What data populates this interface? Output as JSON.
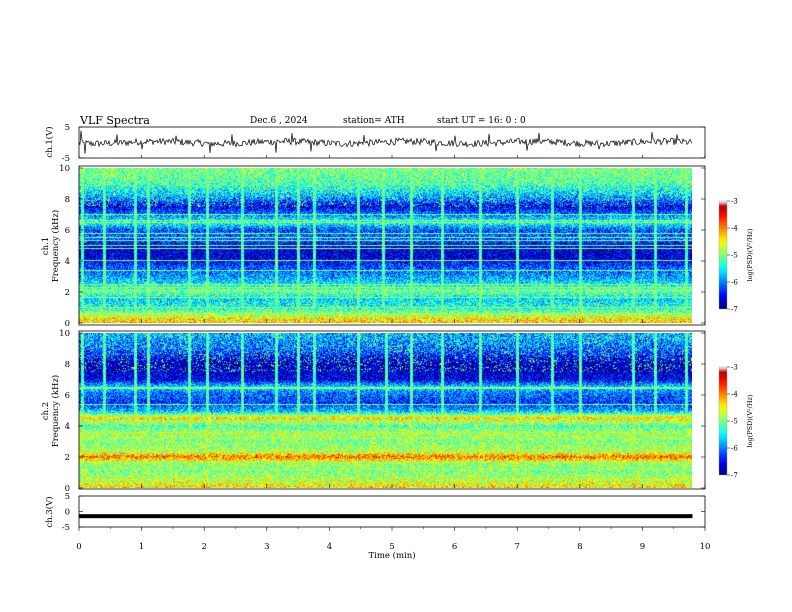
{
  "header": {
    "title": "VLF  Spectra",
    "date": "Dec.6  , 2024",
    "station": "station= ATH",
    "start": "start  UT  =    16: 0  : 0"
  },
  "chart_data": [
    {
      "type": "line",
      "panel": "ch1-waveform",
      "ylabel": "ch.1(V)",
      "ylim": [
        -5,
        5
      ],
      "yticks": [
        "5",
        "-5"
      ],
      "x_unit": "min",
      "xlim": [
        0,
        10
      ],
      "data_end_min": 9.8,
      "baseline_v": 0.0,
      "typical_range_v": [
        -1.2,
        1.0
      ],
      "spikes": [
        {
          "x": 0.03,
          "y": 3.8
        },
        {
          "x": 0.1,
          "y": -3.6
        },
        {
          "x": 0.6,
          "y": 2.6
        },
        {
          "x": 1.0,
          "y": -2.2
        },
        {
          "x": 1.55,
          "y": 2.2
        },
        {
          "x": 2.1,
          "y": -3.4
        },
        {
          "x": 2.45,
          "y": 2.6
        },
        {
          "x": 3.15,
          "y": -3.3
        },
        {
          "x": 3.4,
          "y": 3.0
        },
        {
          "x": 3.7,
          "y": -2.9
        },
        {
          "x": 4.55,
          "y": 2.4
        },
        {
          "x": 5.7,
          "y": -2.8
        },
        {
          "x": 6.0,
          "y": 2.2
        },
        {
          "x": 6.55,
          "y": 2.8
        },
        {
          "x": 7.15,
          "y": -2.6
        },
        {
          "x": 7.35,
          "y": 3.1
        },
        {
          "x": 8.3,
          "y": -2.2
        },
        {
          "x": 9.15,
          "y": 3.4
        },
        {
          "x": 9.55,
          "y": 2.6
        }
      ]
    },
    {
      "type": "heatmap",
      "panel": "ch1-spectrogram",
      "ylabel": "ch.1\nFrequency  (kHz)",
      "ylim": [
        0,
        10
      ],
      "yticks": [
        "0",
        "2",
        "4",
        "6",
        "8",
        "10"
      ],
      "xlim": [
        0,
        10
      ],
      "data_end_min": 9.8,
      "colorbar": {
        "label": "log(PSD)(V²/Hz)",
        "range": [
          -7,
          -3
        ],
        "ticks": [
          "-3",
          "-4",
          "-5",
          "-6",
          "-7"
        ]
      },
      "mean_logpsd_profile": [
        {
          "f_khz": 0.0,
          "v": -4.3
        },
        {
          "f_khz": 0.3,
          "v": -4.5
        },
        {
          "f_khz": 0.6,
          "v": -5.0
        },
        {
          "f_khz": 1.0,
          "v": -5.4
        },
        {
          "f_khz": 1.5,
          "v": -5.6
        },
        {
          "f_khz": 2.0,
          "v": -5.1
        },
        {
          "f_khz": 2.2,
          "v": -5.2
        },
        {
          "f_khz": 2.6,
          "v": -5.6
        },
        {
          "f_khz": 3.0,
          "v": -5.9
        },
        {
          "f_khz": 3.6,
          "v": -6.2
        },
        {
          "f_khz": 4.2,
          "v": -6.7
        },
        {
          "f_khz": 5.0,
          "v": -6.6
        },
        {
          "f_khz": 5.4,
          "v": -6.1
        },
        {
          "f_khz": 6.0,
          "v": -6.2
        },
        {
          "f_khz": 6.5,
          "v": -5.3
        },
        {
          "f_khz": 7.0,
          "v": -6.0
        },
        {
          "f_khz": 7.5,
          "v": -6.6
        },
        {
          "f_khz": 8.2,
          "v": -5.8
        },
        {
          "f_khz": 9.0,
          "v": -5.2
        },
        {
          "f_khz": 10.0,
          "v": -5.0
        }
      ],
      "narrowband_lines_khz": [
        0.6,
        1.0,
        1.6,
        2.1,
        2.25,
        2.5,
        3.4,
        4.0,
        4.8,
        5.0,
        5.3,
        5.5,
        5.8,
        6.5,
        6.6,
        7.0
      ],
      "sferic_times_min": [
        0.05,
        0.4,
        0.9,
        1.1,
        1.75,
        2.05,
        2.6,
        3.15,
        3.5,
        3.75,
        4.45,
        4.85,
        5.3,
        5.8,
        6.4,
        7.0,
        7.55,
        8.0,
        8.85,
        9.2,
        9.7
      ]
    },
    {
      "type": "heatmap",
      "panel": "ch2-spectrogram",
      "ylabel": "ch.2\nFrequency  (kHz)",
      "ylim": [
        0,
        10
      ],
      "yticks": [
        "0",
        "2",
        "4",
        "6",
        "8",
        "10"
      ],
      "xlim": [
        0,
        10
      ],
      "data_end_min": 9.8,
      "colorbar": {
        "label": "log(PSD)(V²/Hz)",
        "range": [
          -7,
          -3
        ],
        "ticks": [
          "-3",
          "-4",
          "-5",
          "-6",
          "-7"
        ]
      },
      "mean_logpsd_profile": [
        {
          "f_khz": 0.0,
          "v": -4.4
        },
        {
          "f_khz": 0.4,
          "v": -4.7
        },
        {
          "f_khz": 1.0,
          "v": -5.0
        },
        {
          "f_khz": 1.6,
          "v": -4.9
        },
        {
          "f_khz": 2.0,
          "v": -3.9
        },
        {
          "f_khz": 2.3,
          "v": -4.8
        },
        {
          "f_khz": 3.0,
          "v": -5.0
        },
        {
          "f_khz": 3.5,
          "v": -4.8
        },
        {
          "f_khz": 4.0,
          "v": -5.2
        },
        {
          "f_khz": 4.5,
          "v": -4.4
        },
        {
          "f_khz": 5.0,
          "v": -5.8
        },
        {
          "f_khz": 5.5,
          "v": -6.3
        },
        {
          "f_khz": 6.2,
          "v": -6.0
        },
        {
          "f_khz": 6.5,
          "v": -5.5
        },
        {
          "f_khz": 7.0,
          "v": -6.6
        },
        {
          "f_khz": 8.0,
          "v": -6.8
        },
        {
          "f_khz": 9.0,
          "v": -6.1
        },
        {
          "f_khz": 10.0,
          "v": -5.8
        }
      ],
      "narrowband_lines_khz": [
        0.5,
        1.2,
        1.6,
        2.0,
        2.1,
        2.5,
        3.2,
        3.6,
        4.5,
        4.7,
        5.4,
        6.4,
        6.5
      ],
      "sferic_times_min": [
        0.05,
        0.4,
        0.9,
        1.1,
        1.75,
        2.05,
        2.6,
        3.15,
        3.5,
        3.75,
        4.45,
        4.9,
        5.3,
        5.8,
        6.4,
        7.0,
        7.55,
        8.0,
        8.85,
        9.2,
        9.7
      ]
    },
    {
      "type": "line",
      "panel": "ch3-waveform",
      "ylabel": "ch.3(V)",
      "ylim": [
        -5,
        5
      ],
      "yticks": [
        "5",
        "0",
        "-5"
      ],
      "xlim": [
        0,
        10
      ],
      "data_end_min": 9.8,
      "baseline_v": -1.5,
      "xlabel": "Time  (min)",
      "xticks": [
        "0",
        "1",
        "2",
        "3",
        "4",
        "5",
        "6",
        "7",
        "8",
        "9",
        "10"
      ]
    }
  ]
}
